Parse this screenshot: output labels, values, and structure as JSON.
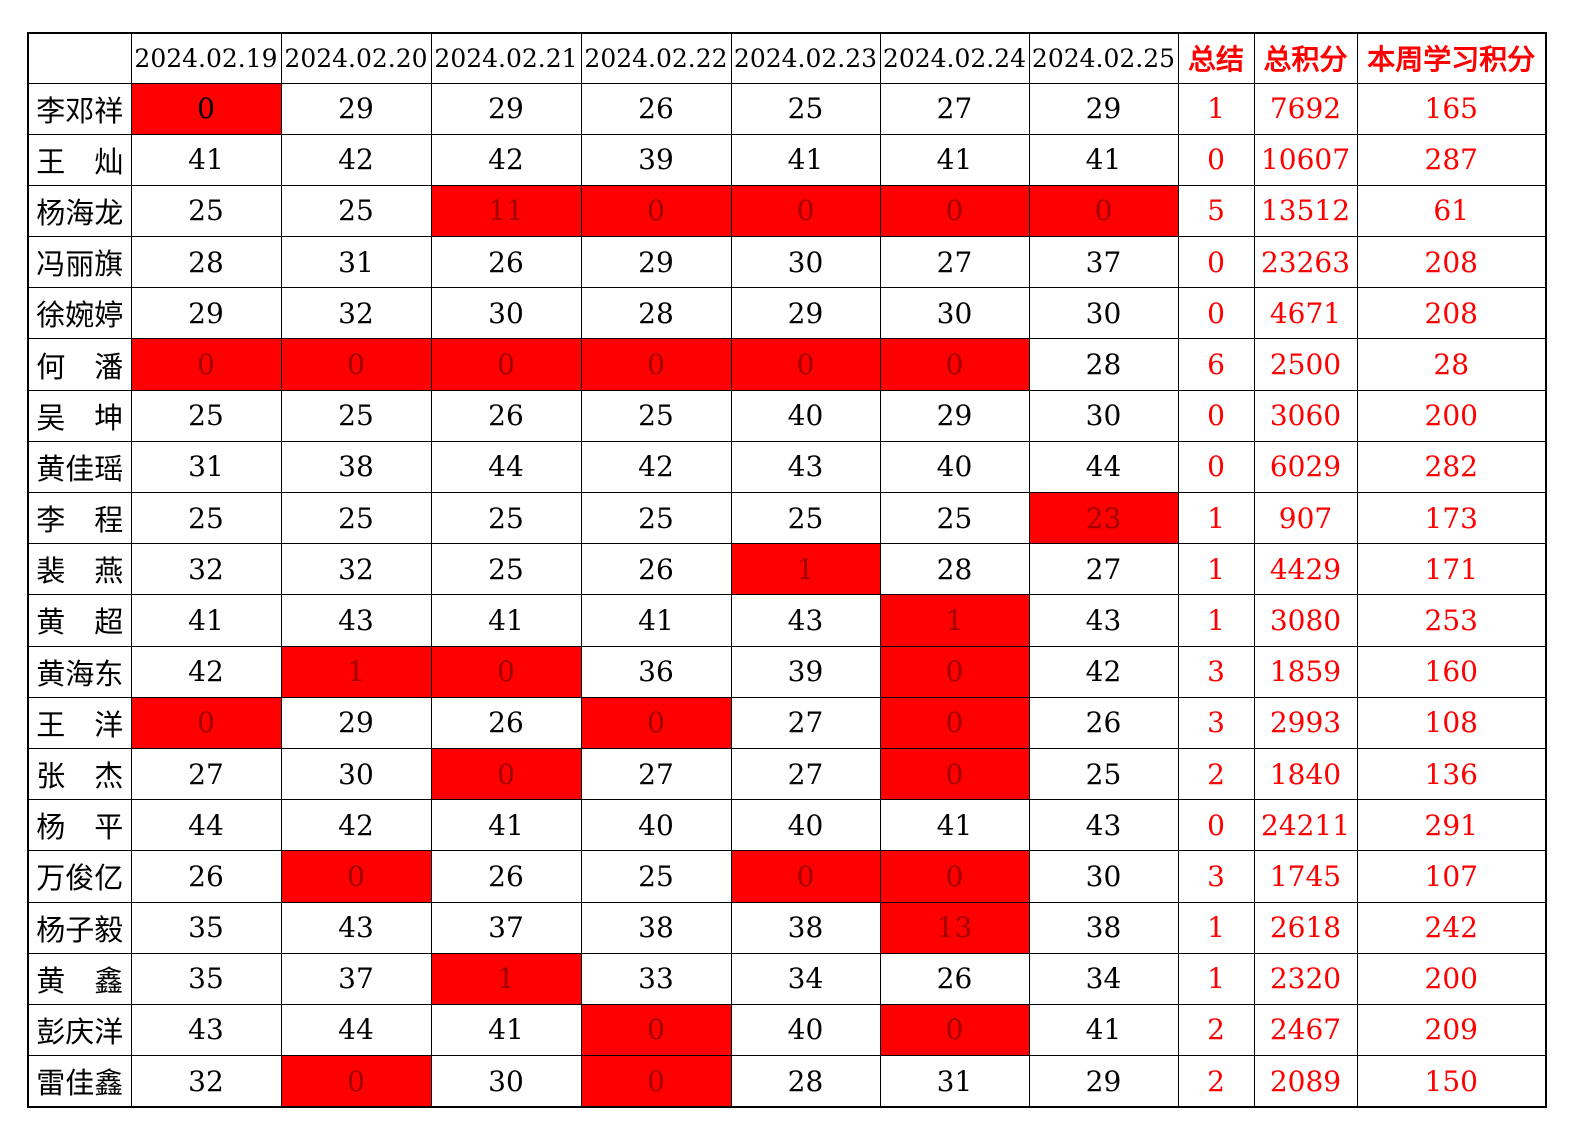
{
  "colors": {
    "highlight_background": "#ff0000",
    "highlight_dark_text": "#a00000",
    "accent_red_text": "#ff0000",
    "normal_text": "#000000",
    "grid_border": "#000000",
    "page_background": "#ffffff"
  },
  "table": {
    "columns": [
      "",
      "2024.02.19",
      "2024.02.20",
      "2024.02.21",
      "2024.02.22",
      "2024.02.23",
      "2024.02.24",
      "2024.02.25",
      "总结",
      "总积分",
      "本周学习积分"
    ],
    "rows": [
      {
        "name": "李邓祥",
        "scores": [
          {
            "v": "0",
            "hl": "black"
          },
          {
            "v": "29"
          },
          {
            "v": "29"
          },
          {
            "v": "26"
          },
          {
            "v": "25"
          },
          {
            "v": "27"
          },
          {
            "v": "29"
          }
        ],
        "summary": "1",
        "total": "7692",
        "week": "165"
      },
      {
        "name": "王　灿",
        "scores": [
          {
            "v": "41"
          },
          {
            "v": "42"
          },
          {
            "v": "42"
          },
          {
            "v": "39"
          },
          {
            "v": "41"
          },
          {
            "v": "41"
          },
          {
            "v": "41"
          }
        ],
        "summary": "0",
        "total": "10607",
        "week": "287"
      },
      {
        "name": "杨海龙",
        "scores": [
          {
            "v": "25"
          },
          {
            "v": "25"
          },
          {
            "v": "11",
            "hl": "dark"
          },
          {
            "v": "0",
            "hl": "dark"
          },
          {
            "v": "0",
            "hl": "dark"
          },
          {
            "v": "0",
            "hl": "dark"
          },
          {
            "v": "0",
            "hl": "dark"
          }
        ],
        "summary": "5",
        "total": "13512",
        "week": "61"
      },
      {
        "name": "冯丽旗",
        "scores": [
          {
            "v": "28"
          },
          {
            "v": "31"
          },
          {
            "v": "26"
          },
          {
            "v": "29"
          },
          {
            "v": "30"
          },
          {
            "v": "27"
          },
          {
            "v": "37"
          }
        ],
        "summary": "0",
        "total": "23263",
        "week": "208"
      },
      {
        "name": "徐婉婷",
        "scores": [
          {
            "v": "29"
          },
          {
            "v": "32"
          },
          {
            "v": "30"
          },
          {
            "v": "28"
          },
          {
            "v": "29"
          },
          {
            "v": "30"
          },
          {
            "v": "30"
          }
        ],
        "summary": "0",
        "total": "4671",
        "week": "208"
      },
      {
        "name": "何　潘",
        "scores": [
          {
            "v": "0",
            "hl": "dark"
          },
          {
            "v": "0",
            "hl": "dark"
          },
          {
            "v": "0",
            "hl": "dark"
          },
          {
            "v": "0",
            "hl": "dark"
          },
          {
            "v": "0",
            "hl": "dark"
          },
          {
            "v": "0",
            "hl": "dark"
          },
          {
            "v": "28"
          }
        ],
        "summary": "6",
        "total": "2500",
        "week": "28"
      },
      {
        "name": "吴　坤",
        "scores": [
          {
            "v": "25"
          },
          {
            "v": "25"
          },
          {
            "v": "26"
          },
          {
            "v": "25"
          },
          {
            "v": "40"
          },
          {
            "v": "29"
          },
          {
            "v": "30"
          }
        ],
        "summary": "0",
        "total": "3060",
        "week": "200"
      },
      {
        "name": "黄佳瑶",
        "scores": [
          {
            "v": "31"
          },
          {
            "v": "38"
          },
          {
            "v": "44"
          },
          {
            "v": "42"
          },
          {
            "v": "43"
          },
          {
            "v": "40"
          },
          {
            "v": "44"
          }
        ],
        "summary": "0",
        "total": "6029",
        "week": "282"
      },
      {
        "name": "李　程",
        "scores": [
          {
            "v": "25"
          },
          {
            "v": "25"
          },
          {
            "v": "25"
          },
          {
            "v": "25"
          },
          {
            "v": "25"
          },
          {
            "v": "25"
          },
          {
            "v": "23",
            "hl": "dark"
          }
        ],
        "summary": "1",
        "total": "907",
        "week": "173"
      },
      {
        "name": "裴　燕",
        "scores": [
          {
            "v": "32"
          },
          {
            "v": "32"
          },
          {
            "v": "25"
          },
          {
            "v": "26"
          },
          {
            "v": "1",
            "hl": "dark"
          },
          {
            "v": "28"
          },
          {
            "v": "27"
          }
        ],
        "summary": "1",
        "total": "4429",
        "week": "171"
      },
      {
        "name": "黄　超",
        "scores": [
          {
            "v": "41"
          },
          {
            "v": "43"
          },
          {
            "v": "41"
          },
          {
            "v": "41"
          },
          {
            "v": "43"
          },
          {
            "v": "1",
            "hl": "dark"
          },
          {
            "v": "43"
          }
        ],
        "summary": "1",
        "total": "3080",
        "week": "253"
      },
      {
        "name": "黄海东",
        "scores": [
          {
            "v": "42"
          },
          {
            "v": "1",
            "hl": "dark"
          },
          {
            "v": "0",
            "hl": "dark"
          },
          {
            "v": "36"
          },
          {
            "v": "39"
          },
          {
            "v": "0",
            "hl": "dark"
          },
          {
            "v": "42"
          }
        ],
        "summary": "3",
        "total": "1859",
        "week": "160"
      },
      {
        "name": "王　洋",
        "scores": [
          {
            "v": "0",
            "hl": "dark"
          },
          {
            "v": "29"
          },
          {
            "v": "26"
          },
          {
            "v": "0",
            "hl": "dark"
          },
          {
            "v": "27"
          },
          {
            "v": "0",
            "hl": "dark"
          },
          {
            "v": "26"
          }
        ],
        "summary": "3",
        "total": "2993",
        "week": "108"
      },
      {
        "name": "张　杰",
        "scores": [
          {
            "v": "27"
          },
          {
            "v": "30"
          },
          {
            "v": "0",
            "hl": "dark"
          },
          {
            "v": "27"
          },
          {
            "v": "27"
          },
          {
            "v": "0",
            "hl": "dark"
          },
          {
            "v": "25"
          }
        ],
        "summary": "2",
        "total": "1840",
        "week": "136"
      },
      {
        "name": "杨　平",
        "scores": [
          {
            "v": "44"
          },
          {
            "v": "42"
          },
          {
            "v": "41"
          },
          {
            "v": "40"
          },
          {
            "v": "40"
          },
          {
            "v": "41"
          },
          {
            "v": "43"
          }
        ],
        "summary": "0",
        "total": "24211",
        "week": "291"
      },
      {
        "name": "万俊亿",
        "scores": [
          {
            "v": "26"
          },
          {
            "v": "0",
            "hl": "dark"
          },
          {
            "v": "26"
          },
          {
            "v": "25"
          },
          {
            "v": "0",
            "hl": "dark"
          },
          {
            "v": "0",
            "hl": "dark"
          },
          {
            "v": "30"
          }
        ],
        "summary": "3",
        "total": "1745",
        "week": "107"
      },
      {
        "name": "杨子毅",
        "scores": [
          {
            "v": "35"
          },
          {
            "v": "43"
          },
          {
            "v": "37"
          },
          {
            "v": "38"
          },
          {
            "v": "38"
          },
          {
            "v": "13",
            "hl": "dark"
          },
          {
            "v": "38"
          }
        ],
        "summary": "1",
        "total": "2618",
        "week": "242"
      },
      {
        "name": "黄　鑫",
        "scores": [
          {
            "v": "35"
          },
          {
            "v": "37"
          },
          {
            "v": "1",
            "hl": "dark"
          },
          {
            "v": "33"
          },
          {
            "v": "34"
          },
          {
            "v": "26"
          },
          {
            "v": "34"
          }
        ],
        "summary": "1",
        "total": "2320",
        "week": "200"
      },
      {
        "name": "彭庆洋",
        "scores": [
          {
            "v": "43"
          },
          {
            "v": "44"
          },
          {
            "v": "41"
          },
          {
            "v": "0",
            "hl": "dark"
          },
          {
            "v": "40"
          },
          {
            "v": "0",
            "hl": "dark"
          },
          {
            "v": "41"
          }
        ],
        "summary": "2",
        "total": "2467",
        "week": "209"
      },
      {
        "name": "雷佳鑫",
        "scores": [
          {
            "v": "32"
          },
          {
            "v": "0",
            "hl": "dark"
          },
          {
            "v": "30"
          },
          {
            "v": "0",
            "hl": "dark"
          },
          {
            "v": "28"
          },
          {
            "v": "31"
          },
          {
            "v": "29"
          }
        ],
        "summary": "2",
        "total": "2089",
        "week": "150"
      }
    ]
  }
}
